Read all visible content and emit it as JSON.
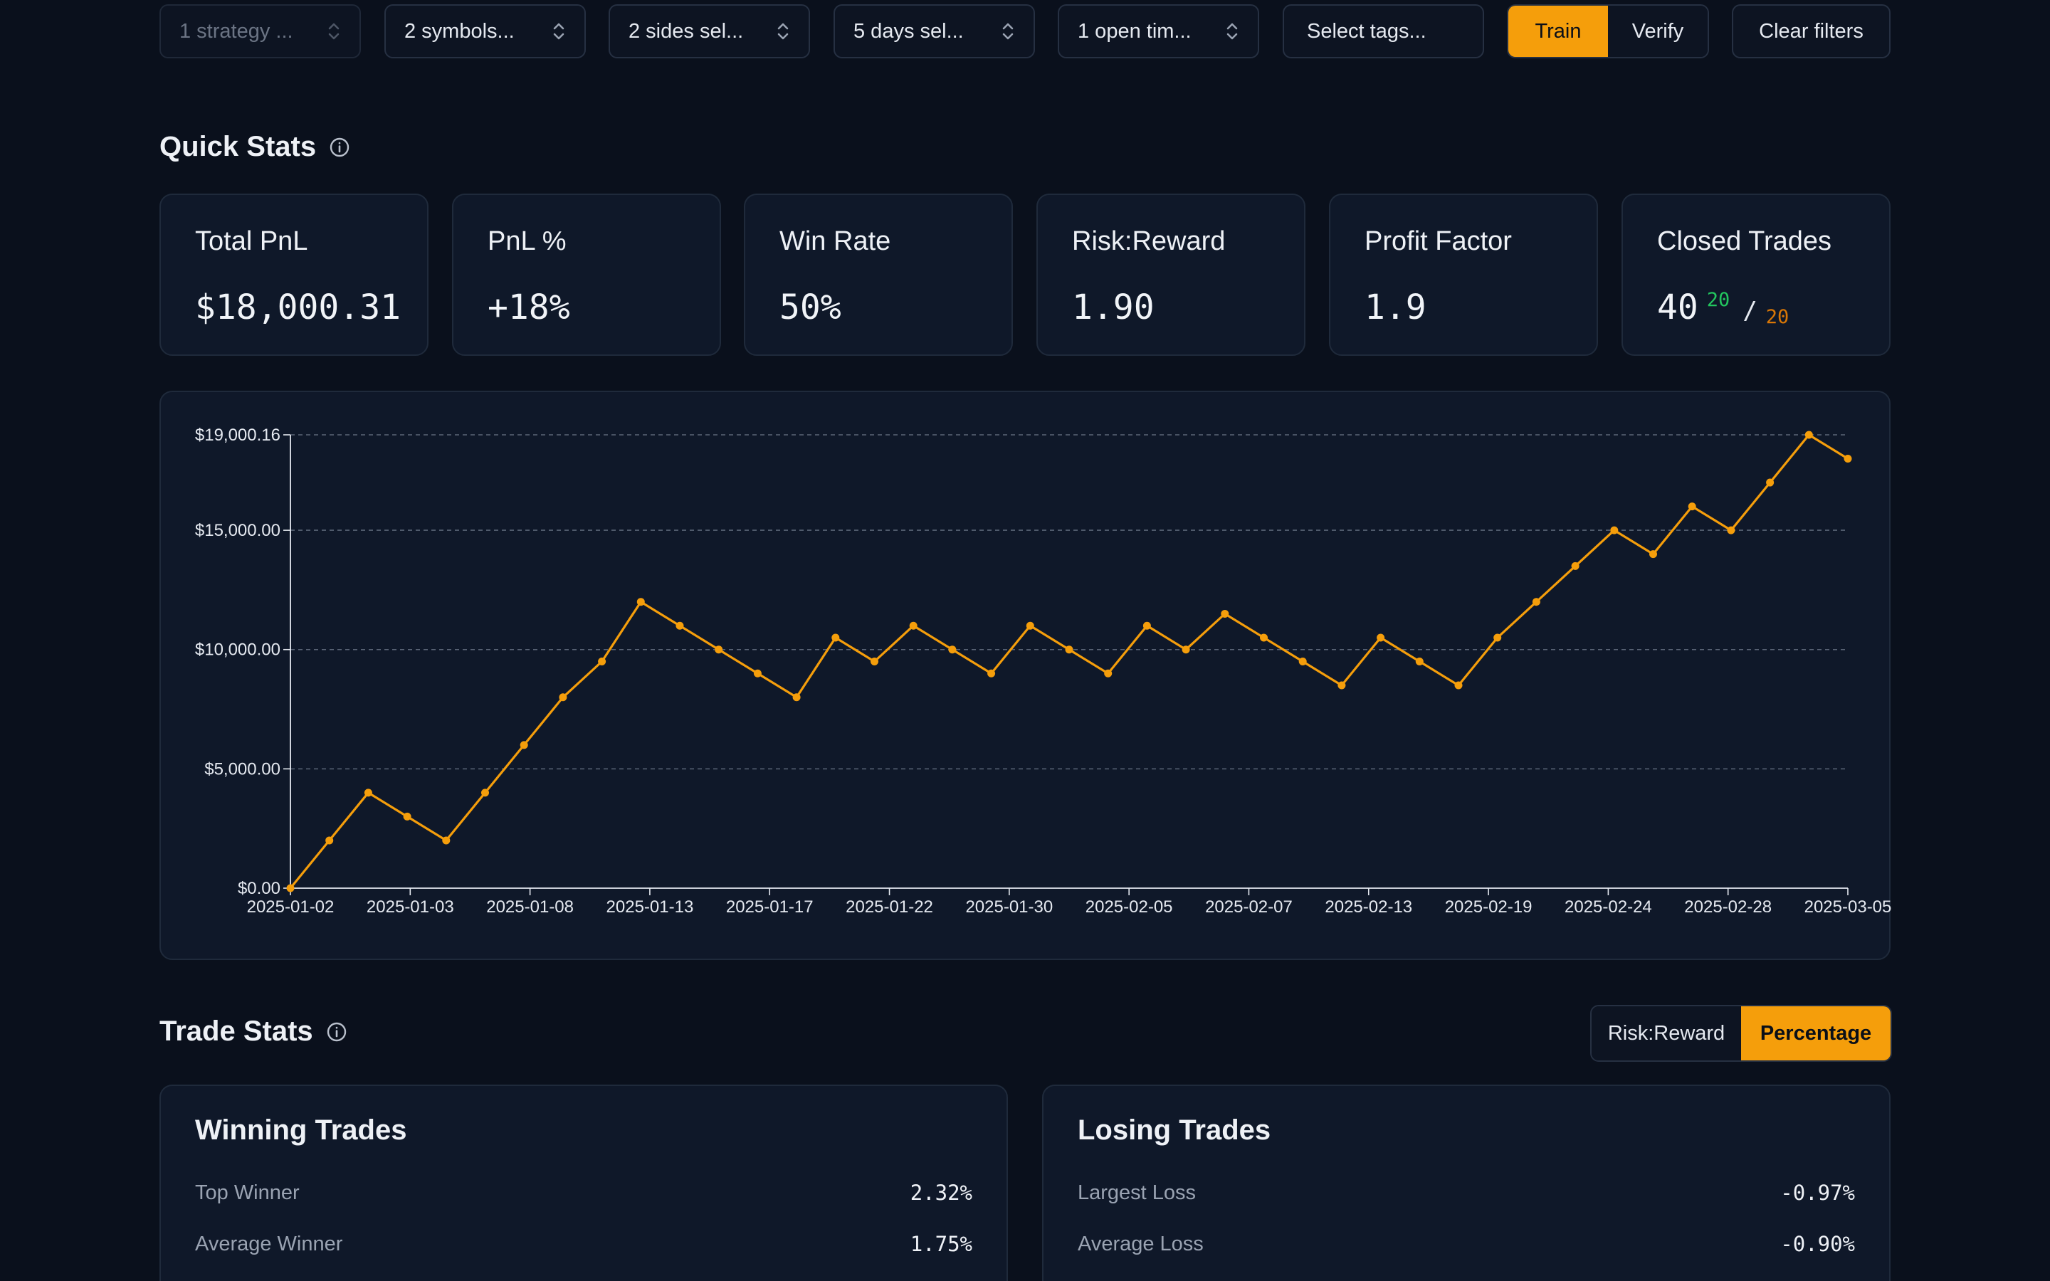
{
  "filters": {
    "strategy": "1 strategy ...",
    "symbols": "2 symbols...",
    "sides": "2 sides sel...",
    "days": "5 days sel...",
    "open_time": "1 open tim...",
    "tags_placeholder": "Select tags...",
    "mode_train": "Train",
    "mode_verify": "Verify",
    "active_mode": "Train",
    "clear": "Clear filters"
  },
  "quick_stats": {
    "title": "Quick Stats",
    "cards": [
      {
        "label": "Total PnL",
        "value": "$18,000.31"
      },
      {
        "label": "PnL %",
        "value": "+18%"
      },
      {
        "label": "Win Rate",
        "value": "50%"
      },
      {
        "label": "Risk:Reward",
        "value": "1.90"
      },
      {
        "label": "Profit Factor",
        "value": "1.9"
      },
      {
        "label": "Closed Trades",
        "value": "40",
        "wins": "20",
        "separator": "/",
        "losses": "20"
      }
    ]
  },
  "chart_data": {
    "type": "line",
    "title": "",
    "xlabel": "",
    "ylabel": "",
    "ylim": [
      0,
      19000.16
    ],
    "y_ticks": [
      {
        "value": 0,
        "label": "$0.00"
      },
      {
        "value": 5000,
        "label": "$5,000.00"
      },
      {
        "value": 10000,
        "label": "$10,000.00"
      },
      {
        "value": 15000,
        "label": "$15,000.00"
      },
      {
        "value": 19000.16,
        "label": "$19,000.16"
      }
    ],
    "x_tick_labels": [
      "2025-01-02",
      "2025-01-03",
      "2025-01-08",
      "2025-01-13",
      "2025-01-17",
      "2025-01-22",
      "2025-01-30",
      "2025-02-05",
      "2025-02-07",
      "2025-02-13",
      "2025-02-19",
      "2025-02-24",
      "2025-02-28",
      "2025-03-05"
    ],
    "grid": true,
    "color": "#f59e0b",
    "series": [
      {
        "values": [
          0,
          2000,
          4000,
          3000,
          2000,
          4000,
          6000,
          8000,
          9500,
          12000,
          11000,
          10000,
          9000,
          8000,
          10500,
          9500,
          11000,
          10000,
          9000,
          11000,
          10000,
          9000,
          11000,
          10000,
          11500,
          10500,
          9500,
          8500,
          10500,
          9500,
          8500,
          10500,
          12000,
          13500,
          15000,
          14000,
          16000,
          15000,
          17000,
          19000.16,
          18000.31
        ]
      }
    ]
  },
  "trade_stats": {
    "title": "Trade Stats",
    "toggle_rr": "Risk:Reward",
    "toggle_pct": "Percentage",
    "active_toggle": "Percentage",
    "winning": {
      "title": "Winning Trades",
      "rows": [
        {
          "label": "Top Winner",
          "value": "2.32%"
        },
        {
          "label": "Average Winner",
          "value": "1.75%"
        }
      ]
    },
    "losing": {
      "title": "Losing Trades",
      "rows": [
        {
          "label": "Largest Loss",
          "value": "-0.97%"
        },
        {
          "label": "Average Loss",
          "value": "-0.90%"
        }
      ]
    }
  }
}
